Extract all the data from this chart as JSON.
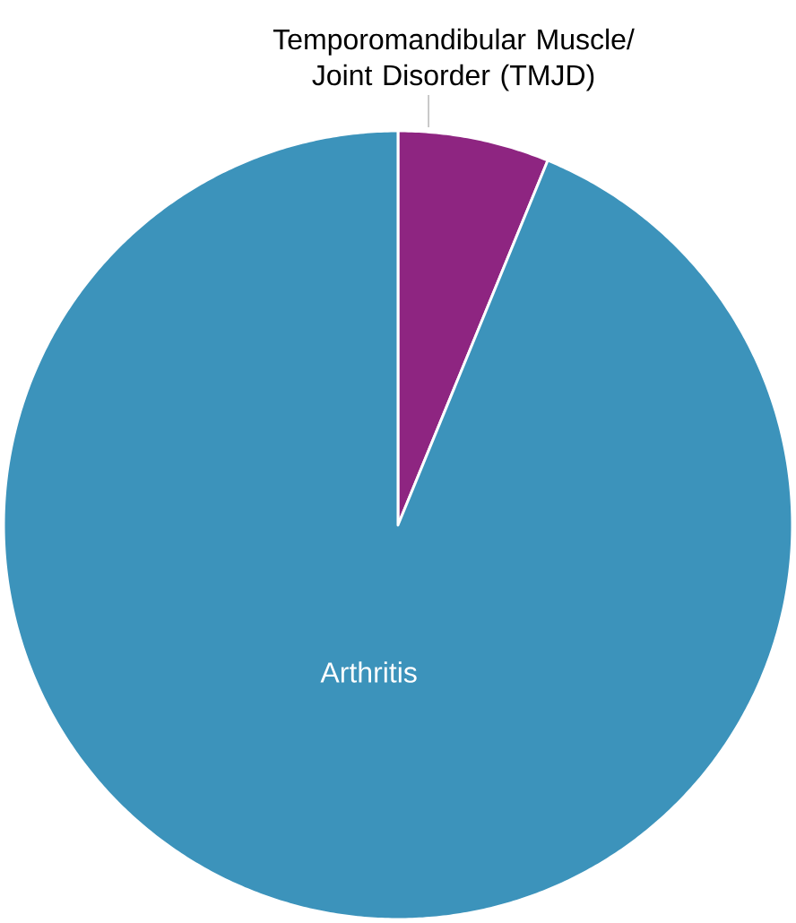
{
  "chart_data": {
    "type": "pie",
    "categories": [
      "Temporomandibular Muscle/ Joint Disorder (TMJD)",
      "Arthritis"
    ],
    "values": [
      6.2,
      93.8
    ],
    "colors": [
      "#8e2581",
      "#3c93bb"
    ]
  }
}
